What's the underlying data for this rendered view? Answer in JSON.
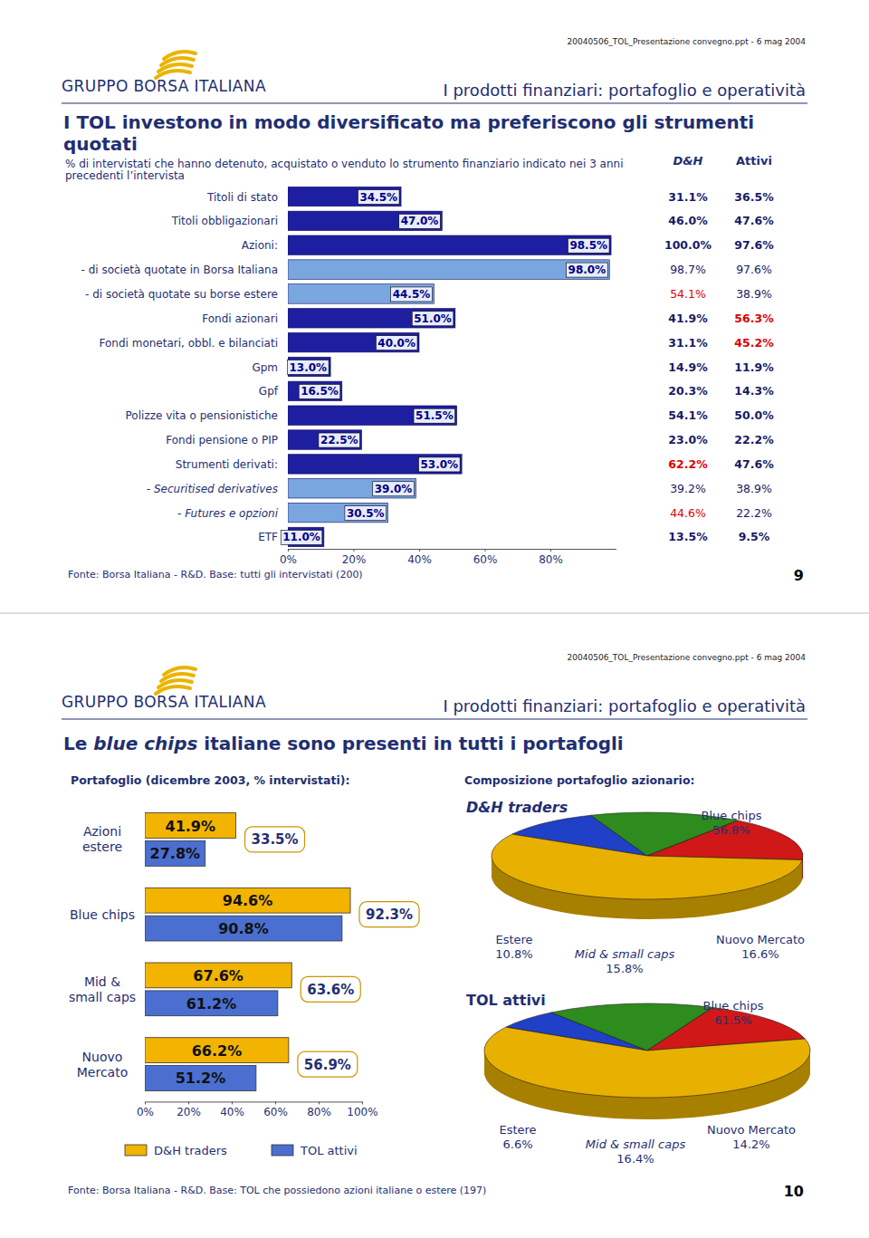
{
  "slides": [
    {
      "logo": "GRUPPO BORSA ITALIANA",
      "file_note": "20040506_TOL_Presentazione convegno.ppt - 6 mag 2004",
      "section": "I prodotti finanziari: portafoglio e operatività",
      "title": "I TOL investono in modo diversificato ma preferiscono gli strumenti quotati",
      "subtitle": "% di intervistati che hanno detenuto, acquistato o venduto lo strumento finanziario indicato nei 3 anni precedenti l’intervista",
      "source": "Fonte: Borsa Italiana - R&D. Base: tutti gli intervistati (200)",
      "page": "9",
      "table": {
        "header": [
          "D&H",
          "Attivi"
        ],
        "rows": [
          [
            "31.1%",
            "36.5%"
          ],
          [
            "46.0%",
            "47.6%"
          ],
          [
            "100.0%",
            "97.6%"
          ],
          [
            "98.7%",
            "97.6%"
          ],
          [
            "54.1%",
            "38.9%"
          ],
          [
            "41.9%",
            "56.3%"
          ],
          [
            "31.1%",
            "45.2%"
          ],
          [
            "14.9%",
            "11.9%"
          ],
          [
            "20.3%",
            "14.3%"
          ],
          [
            "54.1%",
            "50.0%"
          ],
          [
            "23.0%",
            "22.2%"
          ],
          [
            "62.2%",
            "47.6%"
          ],
          [
            "39.2%",
            "38.9%"
          ],
          [
            "44.6%",
            "22.2%"
          ],
          [
            "13.5%",
            "9.5%"
          ]
        ],
        "colors": [
          [
            "#1a1a66",
            "#1a1a66"
          ],
          [
            "#1a1a66",
            "#1a1a66"
          ],
          [
            "#1a1a66",
            "#1a1a66"
          ],
          [
            "#1a1a66",
            "#1a1a66"
          ],
          [
            "#e00000",
            "#1a1a66"
          ],
          [
            "#1a1a66",
            "#e00000"
          ],
          [
            "#1a1a66",
            "#e00000"
          ],
          [
            "#1a1a66",
            "#1a1a66"
          ],
          [
            "#1a1a66",
            "#1a1a66"
          ],
          [
            "#1a1a66",
            "#1a1a66"
          ],
          [
            "#1a1a66",
            "#1a1a66"
          ],
          [
            "#e00000",
            "#1a1a66"
          ],
          [
            "#1a1a66",
            "#1a1a66"
          ],
          [
            "#e00000",
            "#1a1a66"
          ],
          [
            "#1a1a66",
            "#1a1a66"
          ]
        ]
      }
    },
    {
      "logo": "GRUPPO BORSA ITALIANA",
      "file_note": "20040506_TOL_Presentazione convegno.ppt - 6 mag 2004",
      "section": "I prodotti finanziari: portafoglio e operatività",
      "title": [
        "Le ",
        "blue chips",
        " italiane sono presenti in tutti i portafogli"
      ],
      "left_heading": "Portafoglio (dicembre 2003, % intervistati):",
      "right_heading": "Composizione portafoglio azionario:",
      "source": "Fonte: Borsa Italiana - R&D. Base: TOL che possiedono azioni italiane o estere (197)",
      "page": "10"
    }
  ],
  "chart_data": [
    {
      "type": "bar",
      "orientation": "horizontal",
      "data_labels": true,
      "categories": [
        "Titoli di stato",
        "Titoli obbligazionari",
        "Azioni:",
        "- di società quotate in Borsa Italiana",
        "- di società quotate su borse estere",
        "Fondi azionari",
        "Fondi monetari, obbl. e bilanciati",
        "Gpm",
        "Gpf",
        "Polizze vita o pensionistiche",
        "Fondi pensione o PIP",
        "Strumenti derivati:",
        "- Securitised derivatives",
        "- Futures e opzioni",
        "ETF"
      ],
      "values": [
        34.5,
        47.0,
        98.5,
        98.0,
        44.5,
        51.0,
        40.0,
        13.0,
        16.5,
        51.5,
        22.5,
        53.0,
        39.0,
        30.5,
        11.0
      ],
      "value_labels": [
        "34.5%",
        "47.0%",
        "98.5%",
        "98.0%",
        "44.5%",
        "51.0%",
        "40.0%",
        "13.0%",
        "16.5%",
        "51.5%",
        "22.5%",
        "53.0%",
        "39.0%",
        "30.5%",
        "11.0%"
      ],
      "colors": [
        "#1e1ea0",
        "#1e1ea0",
        "#1e1ea0",
        "#7aa6e0",
        "#7aa6e0",
        "#1e1ea0",
        "#1e1ea0",
        "#1e1ea0",
        "#1e1ea0",
        "#1e1ea0",
        "#1e1ea0",
        "#1e1ea0",
        "#7aa6e0",
        "#7aa6e0",
        "#1e1ea0"
      ],
      "xlim": [
        0,
        100
      ],
      "xticks": [
        {
          "value": 0,
          "label": "0%"
        },
        {
          "value": 20,
          "label": "20%"
        },
        {
          "value": 40,
          "label": "40%"
        },
        {
          "value": 60,
          "label": "60%"
        },
        {
          "value": 80,
          "label": "80%"
        }
      ]
    },
    {
      "type": "bar",
      "orientation": "horizontal",
      "data_labels": true,
      "legend": "bottom",
      "categories": [
        "Azioni\nestere",
        "Blue chips",
        "Mid &\nsmall caps",
        "Nuovo\nMercato"
      ],
      "series": [
        {
          "name": "D&H traders",
          "color": "#f2b400",
          "values": [
            41.9,
            94.6,
            67.6,
            66.2
          ],
          "value_labels": [
            "41.9%",
            "94.6%",
            "67.6%",
            "66.2%"
          ]
        },
        {
          "name": "TOL attivi",
          "color": "#4a6fd0",
          "values": [
            27.8,
            90.8,
            61.2,
            51.2
          ],
          "value_labels": [
            "27.8%",
            "90.8%",
            "61.2%",
            "51.2%"
          ]
        }
      ],
      "annotations": [
        "33.5%",
        "92.3%",
        "63.6%",
        "56.9%"
      ],
      "xlim": [
        0,
        100
      ],
      "xticks": [
        {
          "value": 0,
          "label": "0%"
        },
        {
          "value": 20,
          "label": "20%"
        },
        {
          "value": 40,
          "label": "40%"
        },
        {
          "value": 60,
          "label": "60%"
        },
        {
          "value": 80,
          "label": "80%"
        },
        {
          "value": 100,
          "label": "100%"
        }
      ]
    },
    {
      "type": "pie",
      "title": "D&H traders",
      "data_labels": true,
      "categories": [
        "Estere",
        "Mid & small caps",
        "Nuovo Mercato",
        "Blue chips"
      ],
      "values": [
        10.8,
        15.8,
        16.6,
        56.8
      ],
      "value_labels": [
        "10.8%",
        "15.8%",
        "16.6%",
        "56.8%"
      ],
      "colors": [
        "#2040c8",
        "#2e8b1e",
        "#d01818",
        "#e8b000"
      ]
    },
    {
      "type": "pie",
      "title": "TOL attivi",
      "data_labels": true,
      "categories": [
        "Estere",
        "Mid & small caps",
        "Nuovo Mercato",
        "Blue chips"
      ],
      "values": [
        6.6,
        16.4,
        14.2,
        61.5
      ],
      "value_labels": [
        "6.6%",
        "16.4%",
        "14.2%",
        "61.5%"
      ],
      "colors": [
        "#2040c8",
        "#2e8b1e",
        "#d01818",
        "#e8b000"
      ]
    }
  ]
}
